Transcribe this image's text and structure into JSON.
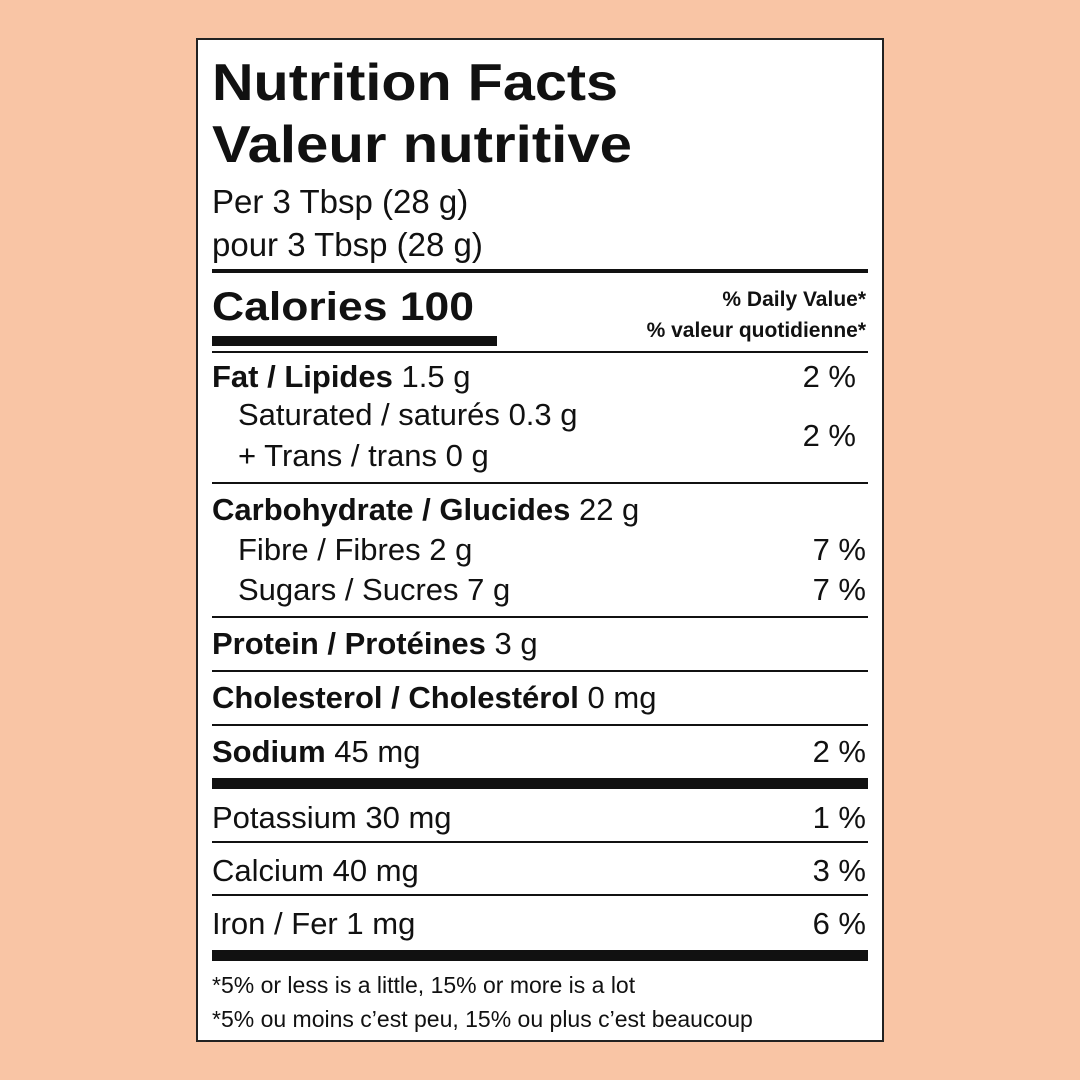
{
  "header": {
    "title": "Nutrition Facts",
    "title_fr": "Valeur nutritive",
    "serving": "Per 3 Tbsp (28 g)",
    "serving_fr": "pour 3 Tbsp (28 g)"
  },
  "calories": "Calories 100",
  "daily_value_header": [
    "% Daily Value*",
    "% valeur quotidienne*"
  ],
  "nutrients": [
    {
      "name": "Fat / Lipides",
      "amount": "1.5 g",
      "dv": "2 %"
    },
    {
      "name": "Saturated / saturés",
      "amount": "0.3 g",
      "dv": "2 %"
    },
    {
      "name": "+ Trans / trans",
      "amount": "0 g"
    },
    {
      "name": "Carbohydrate / Glucides",
      "amount": "22 g"
    },
    {
      "name": "Fibre / Fibres",
      "amount": "2 g",
      "dv": "7 %"
    },
    {
      "name": "Sugars / Sucres",
      "amount": "7 g",
      "dv": "7 %"
    },
    {
      "name": "Protein / Protéines",
      "amount": "3 g"
    },
    {
      "name": "Cholesterol / Cholestérol",
      "amount": "0 mg"
    },
    {
      "name": "Sodium",
      "amount": "45 mg",
      "dv": "2 %"
    },
    {
      "name": "Potassium",
      "amount": "30 mg",
      "dv": "1 %"
    },
    {
      "name": "Calcium",
      "amount": "40 mg",
      "dv": "3 %"
    },
    {
      "name": "Iron / Fer",
      "amount": "1 mg",
      "dv": "6 %"
    }
  ],
  "footnotes": [
    "*5% or less is  a little, 15% or more is a lot",
    "*5% ou moins c’est peu, 15% ou plus c’est beaucoup"
  ]
}
